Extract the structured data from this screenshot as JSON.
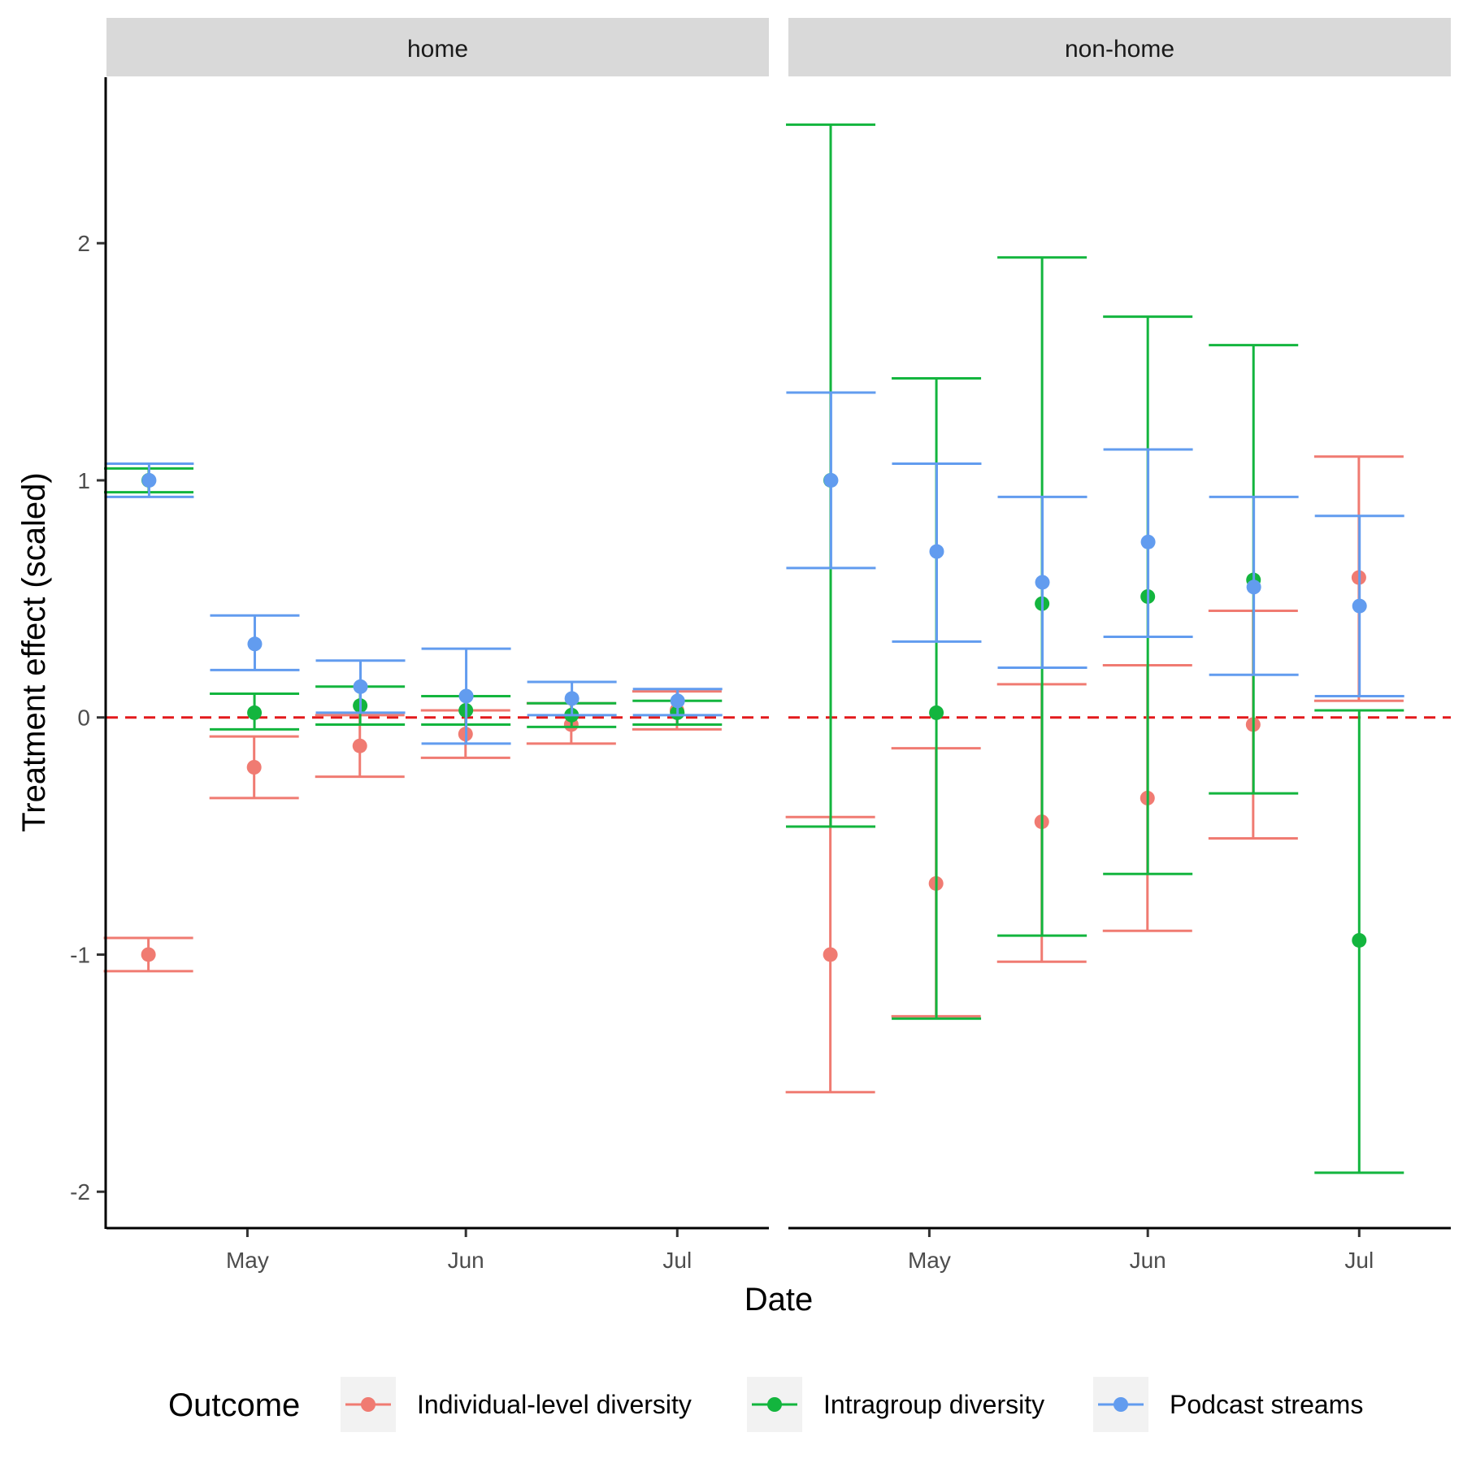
{
  "chart_data": {
    "type": "scatter",
    "title": "",
    "xlabel": "Date",
    "ylabel": "Treatment effect (scaled)",
    "ylim": [
      -2.15,
      2.7
    ],
    "yticks": [
      -2,
      -1,
      0,
      1,
      2
    ],
    "ytick_labels": [
      "-2",
      "-1",
      "0",
      "1",
      "2"
    ],
    "x_dates": [
      "Apr 17",
      "May 02",
      "May 17",
      "Jun 01",
      "Jun 16",
      "Jul 01"
    ],
    "xticks": [
      "May",
      "Jun",
      "Jul"
    ],
    "reference_line": {
      "y": 0,
      "style": "dashed",
      "color": "#e31a1c"
    },
    "legend": {
      "title": "Outcome",
      "position": "bottom"
    },
    "grid": false,
    "series_colors": {
      "Individual-level diversity": "#f07b72",
      "Intragroup diversity": "#13b53e",
      "Podcast streams": "#629cef"
    },
    "panels": [
      {
        "facet": "home",
        "series": [
          {
            "name": "Individual-level diversity",
            "points": [
              {
                "x": "Apr 17",
                "y": -1.0,
                "lower": -1.07,
                "upper": -0.93
              },
              {
                "x": "May 02",
                "y": -0.21,
                "lower": -0.34,
                "upper": -0.08
              },
              {
                "x": "May 17",
                "y": -0.12,
                "lower": -0.25,
                "upper": 0.01
              },
              {
                "x": "Jun 01",
                "y": -0.07,
                "lower": -0.17,
                "upper": 0.03
              },
              {
                "x": "Jun 16",
                "y": -0.03,
                "lower": -0.11,
                "upper": 0.06
              },
              {
                "x": "Jul 01",
                "y": 0.03,
                "lower": -0.05,
                "upper": 0.11
              }
            ]
          },
          {
            "name": "Intragroup diversity",
            "points": [
              {
                "x": "Apr 17",
                "y": 1.0,
                "lower": 0.95,
                "upper": 1.05
              },
              {
                "x": "May 02",
                "y": 0.02,
                "lower": -0.05,
                "upper": 0.1
              },
              {
                "x": "May 17",
                "y": 0.05,
                "lower": -0.03,
                "upper": 0.13
              },
              {
                "x": "Jun 01",
                "y": 0.03,
                "lower": -0.03,
                "upper": 0.09
              },
              {
                "x": "Jun 16",
                "y": 0.01,
                "lower": -0.04,
                "upper": 0.06
              },
              {
                "x": "Jul 01",
                "y": 0.02,
                "lower": -0.03,
                "upper": 0.07
              }
            ]
          },
          {
            "name": "Podcast streams",
            "points": [
              {
                "x": "Apr 17",
                "y": 1.0,
                "lower": 0.93,
                "upper": 1.07
              },
              {
                "x": "May 02",
                "y": 0.31,
                "lower": 0.2,
                "upper": 0.43
              },
              {
                "x": "May 17",
                "y": 0.13,
                "lower": 0.02,
                "upper": 0.24
              },
              {
                "x": "Jun 01",
                "y": 0.09,
                "lower": -0.11,
                "upper": 0.29
              },
              {
                "x": "Jun 16",
                "y": 0.08,
                "lower": 0.01,
                "upper": 0.15
              },
              {
                "x": "Jul 01",
                "y": 0.07,
                "lower": 0.01,
                "upper": 0.12
              }
            ]
          }
        ]
      },
      {
        "facet": "non-home",
        "series": [
          {
            "name": "Individual-level diversity",
            "points": [
              {
                "x": "Apr 17",
                "y": -1.0,
                "lower": -1.58,
                "upper": -0.42
              },
              {
                "x": "May 02",
                "y": -0.7,
                "lower": -1.26,
                "upper": -0.13
              },
              {
                "x": "May 17",
                "y": -0.44,
                "lower": -1.03,
                "upper": 0.14
              },
              {
                "x": "Jun 01",
                "y": -0.34,
                "lower": -0.9,
                "upper": 0.22
              },
              {
                "x": "Jun 16",
                "y": -0.03,
                "lower": -0.51,
                "upper": 0.45
              },
              {
                "x": "Jul 01",
                "y": 0.59,
                "lower": 0.07,
                "upper": 1.1
              }
            ]
          },
          {
            "name": "Intragroup diversity",
            "points": [
              {
                "x": "Apr 17",
                "y": 1.0,
                "lower": -0.46,
                "upper": 2.5
              },
              {
                "x": "May 02",
                "y": 0.02,
                "lower": -1.27,
                "upper": 1.43
              },
              {
                "x": "May 17",
                "y": 0.48,
                "lower": -0.92,
                "upper": 1.94
              },
              {
                "x": "Jun 01",
                "y": 0.51,
                "lower": -0.66,
                "upper": 1.69
              },
              {
                "x": "Jun 16",
                "y": 0.58,
                "lower": -0.32,
                "upper": 1.57
              },
              {
                "x": "Jul 01",
                "y": -0.94,
                "lower": -1.92,
                "upper": 0.03
              }
            ]
          },
          {
            "name": "Podcast streams",
            "points": [
              {
                "x": "Apr 17",
                "y": 1.0,
                "lower": 0.63,
                "upper": 1.37
              },
              {
                "x": "May 02",
                "y": 0.7,
                "lower": 0.32,
                "upper": 1.07
              },
              {
                "x": "May 17",
                "y": 0.57,
                "lower": 0.21,
                "upper": 0.93
              },
              {
                "x": "Jun 01",
                "y": 0.74,
                "lower": 0.34,
                "upper": 1.13
              },
              {
                "x": "Jun 16",
                "y": 0.55,
                "lower": 0.18,
                "upper": 0.93
              },
              {
                "x": "Jul 01",
                "y": 0.47,
                "lower": 0.09,
                "upper": 0.85
              }
            ]
          }
        ]
      }
    ]
  }
}
